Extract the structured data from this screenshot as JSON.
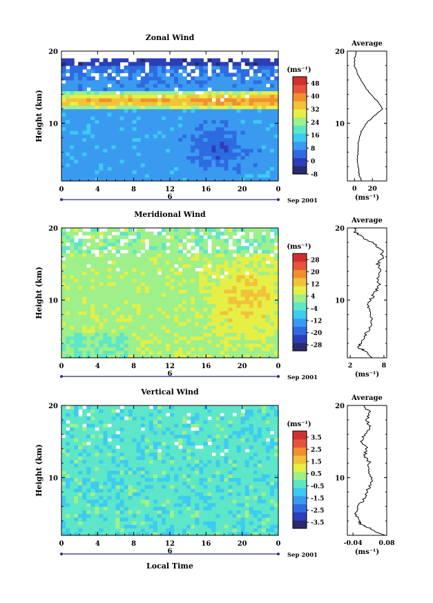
{
  "figure": {
    "date_label": "Sep 2001",
    "units_label": "(ms⁻¹)",
    "average_title": "Average",
    "ylabel": "Height (km)",
    "xlabel_bottom": "Local Time",
    "colors": [
      "#2a2a6e",
      "#2b3fb8",
      "#2f6be0",
      "#3a9af0",
      "#3ccbf2",
      "#5ee6c8",
      "#9ef08a",
      "#e6ef45",
      "#f2c23a",
      "#f0902e",
      "#e5533a",
      "#d03030"
    ]
  },
  "chart_data": [
    {
      "type": "heatmap",
      "title": "Zonal Wind",
      "xlabel": "",
      "ylabel": "Height (km)",
      "x_ticks": [
        "0",
        "4",
        "8",
        "12",
        "16",
        "20",
        "0"
      ],
      "x_day_label": "6",
      "y_ticks": [
        "10",
        "20"
      ],
      "ylim": [
        2,
        20
      ],
      "colorbar_ticks": [
        "48",
        "40",
        "32",
        "24",
        "16",
        "8",
        "0",
        "-8"
      ],
      "colorbar_range": [
        -8,
        52
      ],
      "average": {
        "x_ticks": [
          "0",
          "20"
        ],
        "xlim": [
          -8,
          36
        ],
        "xlabel": "(ms⁻¹)",
        "profile": [
          [
            2,
            8
          ],
          [
            3,
            5
          ],
          [
            4,
            4
          ],
          [
            5,
            3
          ],
          [
            6,
            4
          ],
          [
            7,
            4
          ],
          [
            8,
            5
          ],
          [
            9,
            8
          ],
          [
            10,
            13
          ],
          [
            11,
            22
          ],
          [
            12,
            31
          ],
          [
            13,
            26
          ],
          [
            14,
            18
          ],
          [
            15,
            12
          ],
          [
            16,
            7
          ],
          [
            17,
            3
          ],
          [
            18,
            0
          ],
          [
            19,
            0
          ],
          [
            20,
            2
          ]
        ]
      }
    },
    {
      "type": "heatmap",
      "title": "Meridional Wind",
      "xlabel": "",
      "ylabel": "Height (km)",
      "x_ticks": [
        "0",
        "4",
        "8",
        "12",
        "16",
        "20",
        "0"
      ],
      "x_day_label": "6",
      "y_ticks": [
        "10",
        "20"
      ],
      "ylim": [
        2,
        20
      ],
      "colorbar_ticks": [
        "28",
        "20",
        "12",
        "4",
        "-4",
        "-12",
        "-20",
        "-28"
      ],
      "colorbar_range": [
        -32,
        32
      ],
      "average": {
        "x_ticks": [
          "2",
          "8"
        ],
        "xlim": [
          1.5,
          8.5
        ],
        "xlabel": "(ms⁻¹)",
        "profile": [
          [
            2,
            6.2
          ],
          [
            3,
            4.5
          ],
          [
            3.5,
            3.2
          ],
          [
            4,
            3.8
          ],
          [
            5,
            4.6
          ],
          [
            6,
            5.4
          ],
          [
            7,
            5.8
          ],
          [
            8,
            5.6
          ],
          [
            9,
            5.2
          ],
          [
            10,
            5.6
          ],
          [
            11,
            6.4
          ],
          [
            12,
            7.2
          ],
          [
            13,
            6.8
          ],
          [
            14,
            7.4
          ],
          [
            15,
            7.0
          ],
          [
            16,
            7.8
          ],
          [
            17,
            7.6
          ],
          [
            18,
            5.8
          ],
          [
            19,
            3.5
          ],
          [
            19.5,
            2.8
          ],
          [
            20,
            3.2
          ]
        ]
      }
    },
    {
      "type": "heatmap",
      "title": "Vertical Wind",
      "xlabel": "Local Time",
      "ylabel": "Height (km)",
      "x_ticks": [
        "0",
        "4",
        "8",
        "12",
        "16",
        "20",
        "0"
      ],
      "x_day_label": "6",
      "y_ticks": [
        "10",
        "20"
      ],
      "ylim": [
        2,
        20
      ],
      "colorbar_ticks": [
        "3.5",
        "2.5",
        "1.5",
        "0.5",
        "-0.5",
        "-1.5",
        "-2.5",
        "-3.5"
      ],
      "colorbar_range": [
        -4,
        4
      ],
      "average": {
        "x_ticks": [
          "-0.04",
          "0.08"
        ],
        "xlim": [
          -0.06,
          0.08
        ],
        "xlabel": "(ms⁻¹)",
        "profile": [
          [
            2,
            0.07
          ],
          [
            3,
            0.02
          ],
          [
            3.5,
            -0.01
          ],
          [
            4,
            -0.02
          ],
          [
            5,
            -0.03
          ],
          [
            6,
            -0.02
          ],
          [
            7,
            0.0
          ],
          [
            8,
            0.01
          ],
          [
            9,
            0.02
          ],
          [
            10,
            0.03
          ],
          [
            11,
            0.01
          ],
          [
            12,
            0.02
          ],
          [
            13,
            0.0
          ],
          [
            14,
            0.01
          ],
          [
            15,
            -0.01
          ],
          [
            16,
            0.0
          ],
          [
            17,
            0.02
          ],
          [
            18,
            0.01
          ],
          [
            19,
            0.02
          ],
          [
            20,
            0.0
          ]
        ]
      }
    }
  ]
}
